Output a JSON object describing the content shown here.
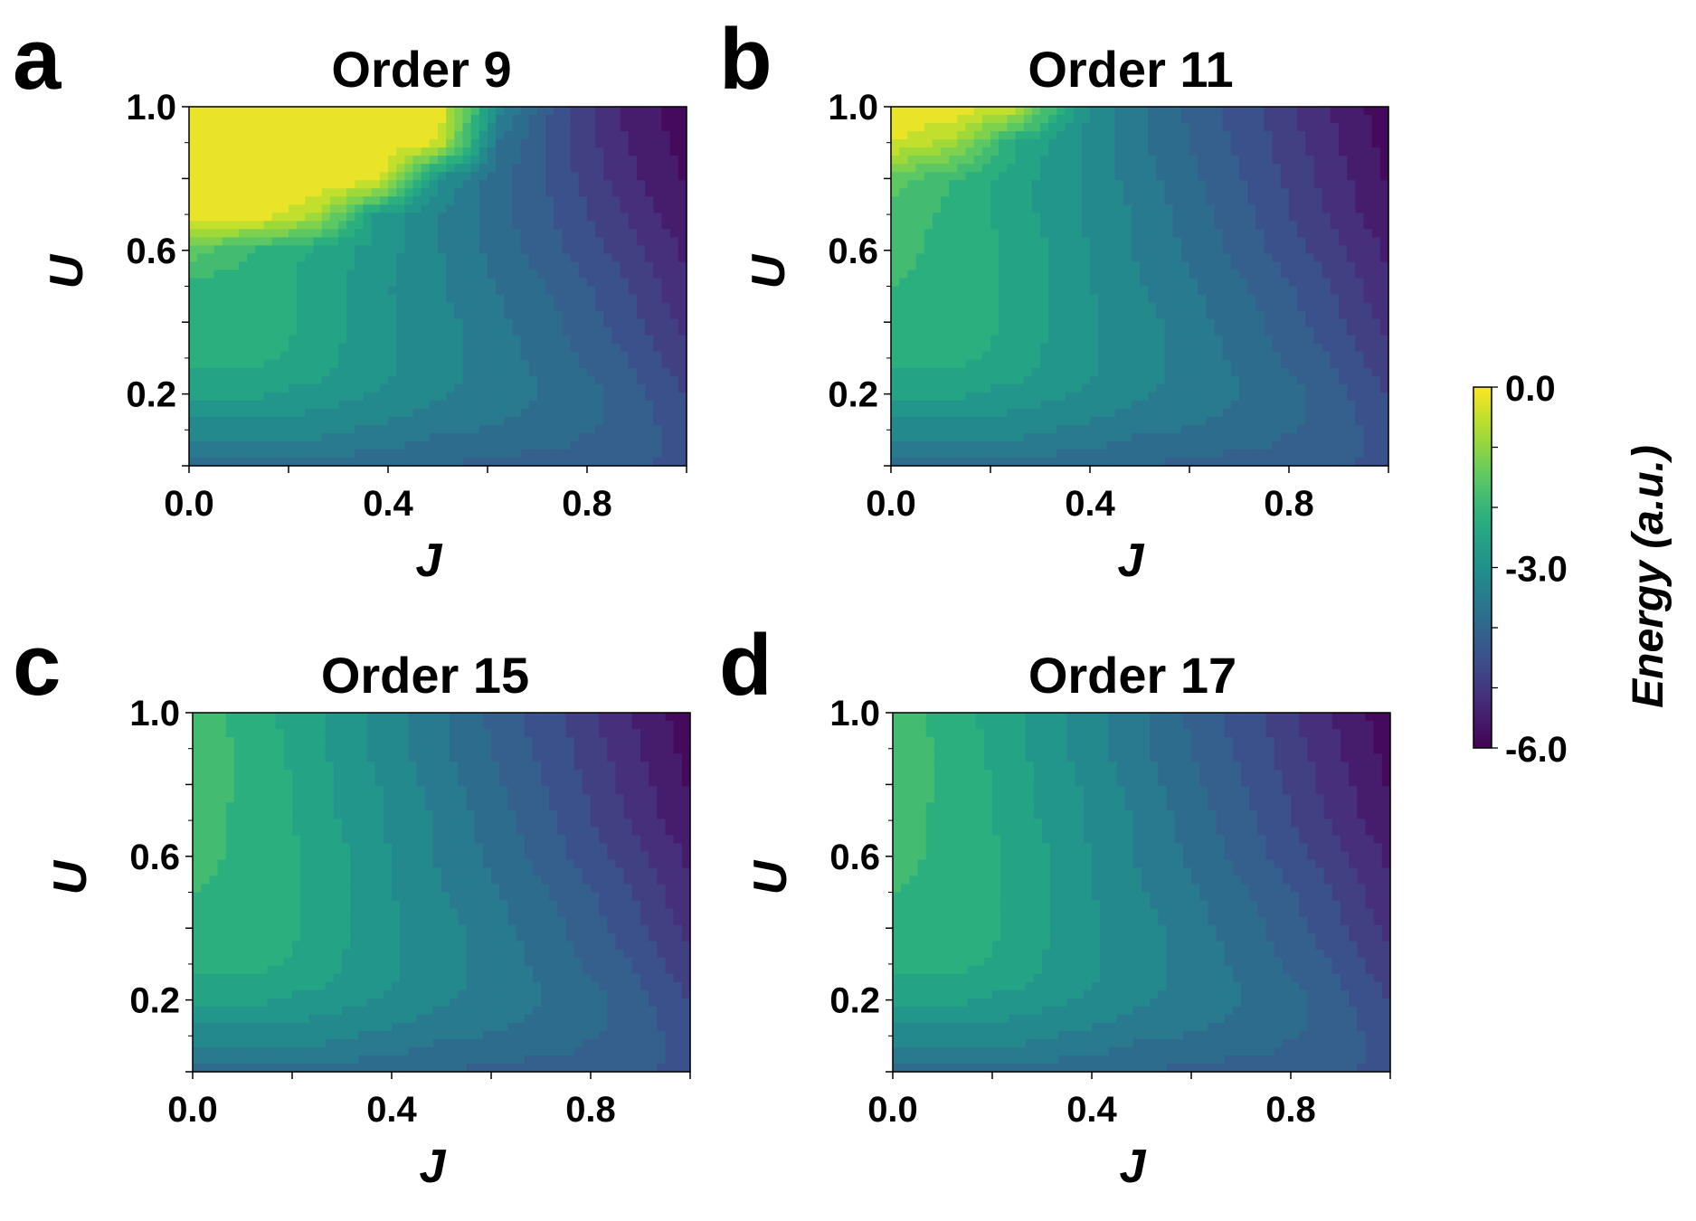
{
  "chart_data": {
    "type": "heatmap",
    "subtype": "filled-contour",
    "colormap": "viridis",
    "x_values": [
      0.0,
      0.125,
      0.25,
      0.375,
      0.5,
      0.625,
      0.75,
      0.875,
      1.0
    ],
    "y_values": [
      0.0,
      0.05,
      0.1,
      0.15,
      0.2,
      0.25,
      0.3,
      0.4,
      0.5,
      0.6,
      0.7,
      0.8,
      0.9,
      1.0
    ],
    "colorbar": {
      "label": "Energy (a.u.)",
      "range": [
        -6.0,
        0.0
      ],
      "tick_labels": [
        "0.0",
        "-3.0",
        "-6.0"
      ],
      "tick_values": [
        0.0,
        -3.0,
        -6.0
      ]
    },
    "panels": [
      {
        "letter": "a",
        "title": "Order 9",
        "xlabel": "J",
        "ylabel": "U",
        "xlim": [
          0.0,
          1.0
        ],
        "ylim": [
          0.0,
          1.0
        ],
        "x_tick_labels": [
          "0.0",
          "0.4",
          "0.8"
        ],
        "y_tick_labels": [
          "0.2",
          "0.6",
          "1.0"
        ],
        "z": [
          [
            -3.8,
            -3.8,
            -3.8,
            -3.9,
            -4.0,
            -4.1,
            -4.2,
            -4.3,
            -4.4
          ],
          [
            -3.5,
            -3.5,
            -3.5,
            -3.6,
            -3.8,
            -3.9,
            -4.0,
            -4.2,
            -4.4
          ],
          [
            -3.2,
            -3.2,
            -3.2,
            -3.4,
            -3.6,
            -3.7,
            -3.9,
            -4.1,
            -4.5
          ],
          [
            -2.9,
            -2.9,
            -3.0,
            -3.2,
            -3.4,
            -3.6,
            -3.8,
            -4.1,
            -4.6
          ],
          [
            -2.6,
            -2.6,
            -2.8,
            -3.0,
            -3.3,
            -3.5,
            -3.8,
            -4.1,
            -4.7
          ],
          [
            -2.4,
            -2.4,
            -2.6,
            -2.9,
            -3.2,
            -3.5,
            -3.8,
            -4.2,
            -4.8
          ],
          [
            -2.2,
            -2.2,
            -2.5,
            -2.9,
            -3.2,
            -3.5,
            -3.9,
            -4.3,
            -4.9
          ],
          [
            -2.1,
            -2.1,
            -2.4,
            -2.9,
            -3.2,
            -3.6,
            -4.0,
            -4.5,
            -5.1
          ],
          [
            -2.1,
            -2.2,
            -2.4,
            -2.9,
            -3.3,
            -3.7,
            -4.1,
            -4.6,
            -5.3
          ],
          [
            -1.5,
            -2.0,
            -2.4,
            -2.8,
            -3.3,
            -3.8,
            -4.3,
            -4.8,
            -5.4
          ],
          [
            0.0,
            0.0,
            -0.6,
            -2.7,
            -3.3,
            -3.9,
            -4.4,
            -5.0,
            -5.6
          ],
          [
            0.0,
            0.0,
            0.0,
            0.0,
            -3.0,
            -3.9,
            -4.5,
            -5.2,
            -5.7
          ],
          [
            0.0,
            0.0,
            0.0,
            0.0,
            -0.3,
            -3.7,
            -4.6,
            -5.3,
            -5.8
          ],
          [
            0.0,
            0.0,
            0.0,
            0.0,
            0.0,
            -3.2,
            -4.6,
            -5.4,
            -5.9
          ]
        ]
      },
      {
        "letter": "b",
        "title": "Order 11",
        "xlabel": "J",
        "ylabel": "U",
        "xlim": [
          0.0,
          1.0
        ],
        "ylim": [
          0.0,
          1.0
        ],
        "x_tick_labels": [
          "0.0",
          "0.4",
          "0.8"
        ],
        "y_tick_labels": [
          "0.2",
          "0.6",
          "1.0"
        ],
        "z": [
          [
            -3.8,
            -3.8,
            -3.8,
            -3.9,
            -4.0,
            -4.1,
            -4.2,
            -4.3,
            -4.4
          ],
          [
            -3.5,
            -3.5,
            -3.5,
            -3.6,
            -3.8,
            -3.9,
            -4.0,
            -4.2,
            -4.4
          ],
          [
            -3.2,
            -3.2,
            -3.2,
            -3.4,
            -3.6,
            -3.7,
            -3.9,
            -4.1,
            -4.5
          ],
          [
            -2.9,
            -2.9,
            -3.0,
            -3.2,
            -3.4,
            -3.6,
            -3.8,
            -4.1,
            -4.6
          ],
          [
            -2.6,
            -2.6,
            -2.8,
            -3.0,
            -3.3,
            -3.5,
            -3.8,
            -4.1,
            -4.7
          ],
          [
            -2.4,
            -2.4,
            -2.6,
            -2.9,
            -3.2,
            -3.5,
            -3.8,
            -4.2,
            -4.8
          ],
          [
            -2.2,
            -2.2,
            -2.5,
            -2.9,
            -3.2,
            -3.5,
            -3.9,
            -4.3,
            -4.9
          ],
          [
            -2.1,
            -2.1,
            -2.4,
            -2.9,
            -3.2,
            -3.6,
            -4.0,
            -4.5,
            -5.1
          ],
          [
            -2.0,
            -2.1,
            -2.4,
            -2.9,
            -3.3,
            -3.7,
            -4.1,
            -4.6,
            -5.3
          ],
          [
            -1.9,
            -2.1,
            -2.4,
            -2.9,
            -3.4,
            -3.8,
            -4.3,
            -4.8,
            -5.4
          ],
          [
            -1.8,
            -2.1,
            -2.5,
            -3.0,
            -3.4,
            -3.9,
            -4.4,
            -5.0,
            -5.6
          ],
          [
            -1.5,
            -2.0,
            -2.5,
            -3.0,
            -3.5,
            -4.0,
            -4.5,
            -5.1,
            -5.7
          ],
          [
            -0.3,
            -0.8,
            -2.3,
            -3.0,
            -3.6,
            -4.1,
            -4.6,
            -5.2,
            -5.8
          ],
          [
            0.0,
            0.0,
            -0.5,
            -2.8,
            -3.6,
            -4.2,
            -4.7,
            -5.3,
            -5.9
          ]
        ]
      },
      {
        "letter": "c",
        "title": "Order 15",
        "xlabel": "J",
        "ylabel": "U",
        "xlim": [
          0.0,
          1.0
        ],
        "ylim": [
          0.0,
          1.0
        ],
        "x_tick_labels": [
          "0.0",
          "0.4",
          "0.8"
        ],
        "y_tick_labels": [
          "0.2",
          "0.6",
          "1.0"
        ],
        "z": [
          [
            -3.8,
            -3.8,
            -3.8,
            -3.9,
            -4.0,
            -4.1,
            -4.2,
            -4.3,
            -4.4
          ],
          [
            -3.5,
            -3.5,
            -3.5,
            -3.6,
            -3.8,
            -3.9,
            -4.0,
            -4.2,
            -4.4
          ],
          [
            -3.2,
            -3.2,
            -3.2,
            -3.4,
            -3.6,
            -3.7,
            -3.9,
            -4.1,
            -4.5
          ],
          [
            -2.9,
            -2.9,
            -3.0,
            -3.2,
            -3.4,
            -3.6,
            -3.8,
            -4.1,
            -4.6
          ],
          [
            -2.6,
            -2.6,
            -2.8,
            -3.0,
            -3.3,
            -3.5,
            -3.8,
            -4.1,
            -4.7
          ],
          [
            -2.4,
            -2.4,
            -2.6,
            -2.9,
            -3.2,
            -3.5,
            -3.8,
            -4.2,
            -4.8
          ],
          [
            -2.2,
            -2.2,
            -2.5,
            -2.9,
            -3.2,
            -3.5,
            -3.9,
            -4.3,
            -4.9
          ],
          [
            -2.1,
            -2.1,
            -2.4,
            -2.9,
            -3.2,
            -3.6,
            -4.0,
            -4.5,
            -5.1
          ],
          [
            -2.0,
            -2.1,
            -2.4,
            -2.9,
            -3.3,
            -3.7,
            -4.1,
            -4.6,
            -5.3
          ],
          [
            -1.9,
            -2.1,
            -2.4,
            -2.9,
            -3.4,
            -3.8,
            -4.3,
            -4.8,
            -5.4
          ],
          [
            -1.9,
            -2.1,
            -2.5,
            -3.0,
            -3.4,
            -3.9,
            -4.4,
            -5.0,
            -5.6
          ],
          [
            -1.8,
            -2.1,
            -2.5,
            -3.0,
            -3.5,
            -4.0,
            -4.5,
            -5.1,
            -5.7
          ],
          [
            -1.8,
            -2.1,
            -2.6,
            -3.1,
            -3.6,
            -4.1,
            -4.6,
            -5.2,
            -5.8
          ],
          [
            -1.8,
            -2.2,
            -2.6,
            -3.1,
            -3.6,
            -4.2,
            -4.7,
            -5.3,
            -5.9
          ]
        ]
      },
      {
        "letter": "d",
        "title": "Order 17",
        "xlabel": "J",
        "ylabel": "U",
        "xlim": [
          0.0,
          1.0
        ],
        "ylim": [
          0.0,
          1.0
        ],
        "x_tick_labels": [
          "0.0",
          "0.4",
          "0.8"
        ],
        "y_tick_labels": [
          "0.2",
          "0.6",
          "1.0"
        ],
        "z": [
          [
            -3.8,
            -3.8,
            -3.8,
            -3.9,
            -4.0,
            -4.1,
            -4.2,
            -4.3,
            -4.4
          ],
          [
            -3.5,
            -3.5,
            -3.5,
            -3.6,
            -3.8,
            -3.9,
            -4.0,
            -4.2,
            -4.4
          ],
          [
            -3.2,
            -3.2,
            -3.2,
            -3.4,
            -3.6,
            -3.7,
            -3.9,
            -4.1,
            -4.5
          ],
          [
            -2.9,
            -2.9,
            -3.0,
            -3.2,
            -3.4,
            -3.6,
            -3.8,
            -4.1,
            -4.6
          ],
          [
            -2.6,
            -2.6,
            -2.8,
            -3.0,
            -3.3,
            -3.5,
            -3.8,
            -4.1,
            -4.7
          ],
          [
            -2.4,
            -2.4,
            -2.6,
            -2.9,
            -3.2,
            -3.5,
            -3.8,
            -4.2,
            -4.8
          ],
          [
            -2.2,
            -2.2,
            -2.5,
            -2.9,
            -3.2,
            -3.5,
            -3.9,
            -4.3,
            -4.9
          ],
          [
            -2.1,
            -2.1,
            -2.4,
            -2.9,
            -3.2,
            -3.6,
            -4.0,
            -4.5,
            -5.1
          ],
          [
            -2.0,
            -2.1,
            -2.4,
            -2.9,
            -3.3,
            -3.7,
            -4.1,
            -4.6,
            -5.3
          ],
          [
            -1.9,
            -2.1,
            -2.4,
            -2.9,
            -3.4,
            -3.8,
            -4.3,
            -4.8,
            -5.4
          ],
          [
            -1.9,
            -2.1,
            -2.5,
            -3.0,
            -3.4,
            -3.9,
            -4.4,
            -5.0,
            -5.6
          ],
          [
            -1.8,
            -2.1,
            -2.5,
            -3.0,
            -3.5,
            -4.0,
            -4.5,
            -5.1,
            -5.7
          ],
          [
            -1.8,
            -2.1,
            -2.6,
            -3.1,
            -3.6,
            -4.1,
            -4.6,
            -5.2,
            -5.8
          ],
          [
            -1.8,
            -2.2,
            -2.6,
            -3.1,
            -3.6,
            -4.2,
            -4.7,
            -5.3,
            -5.9
          ]
        ]
      }
    ]
  }
}
